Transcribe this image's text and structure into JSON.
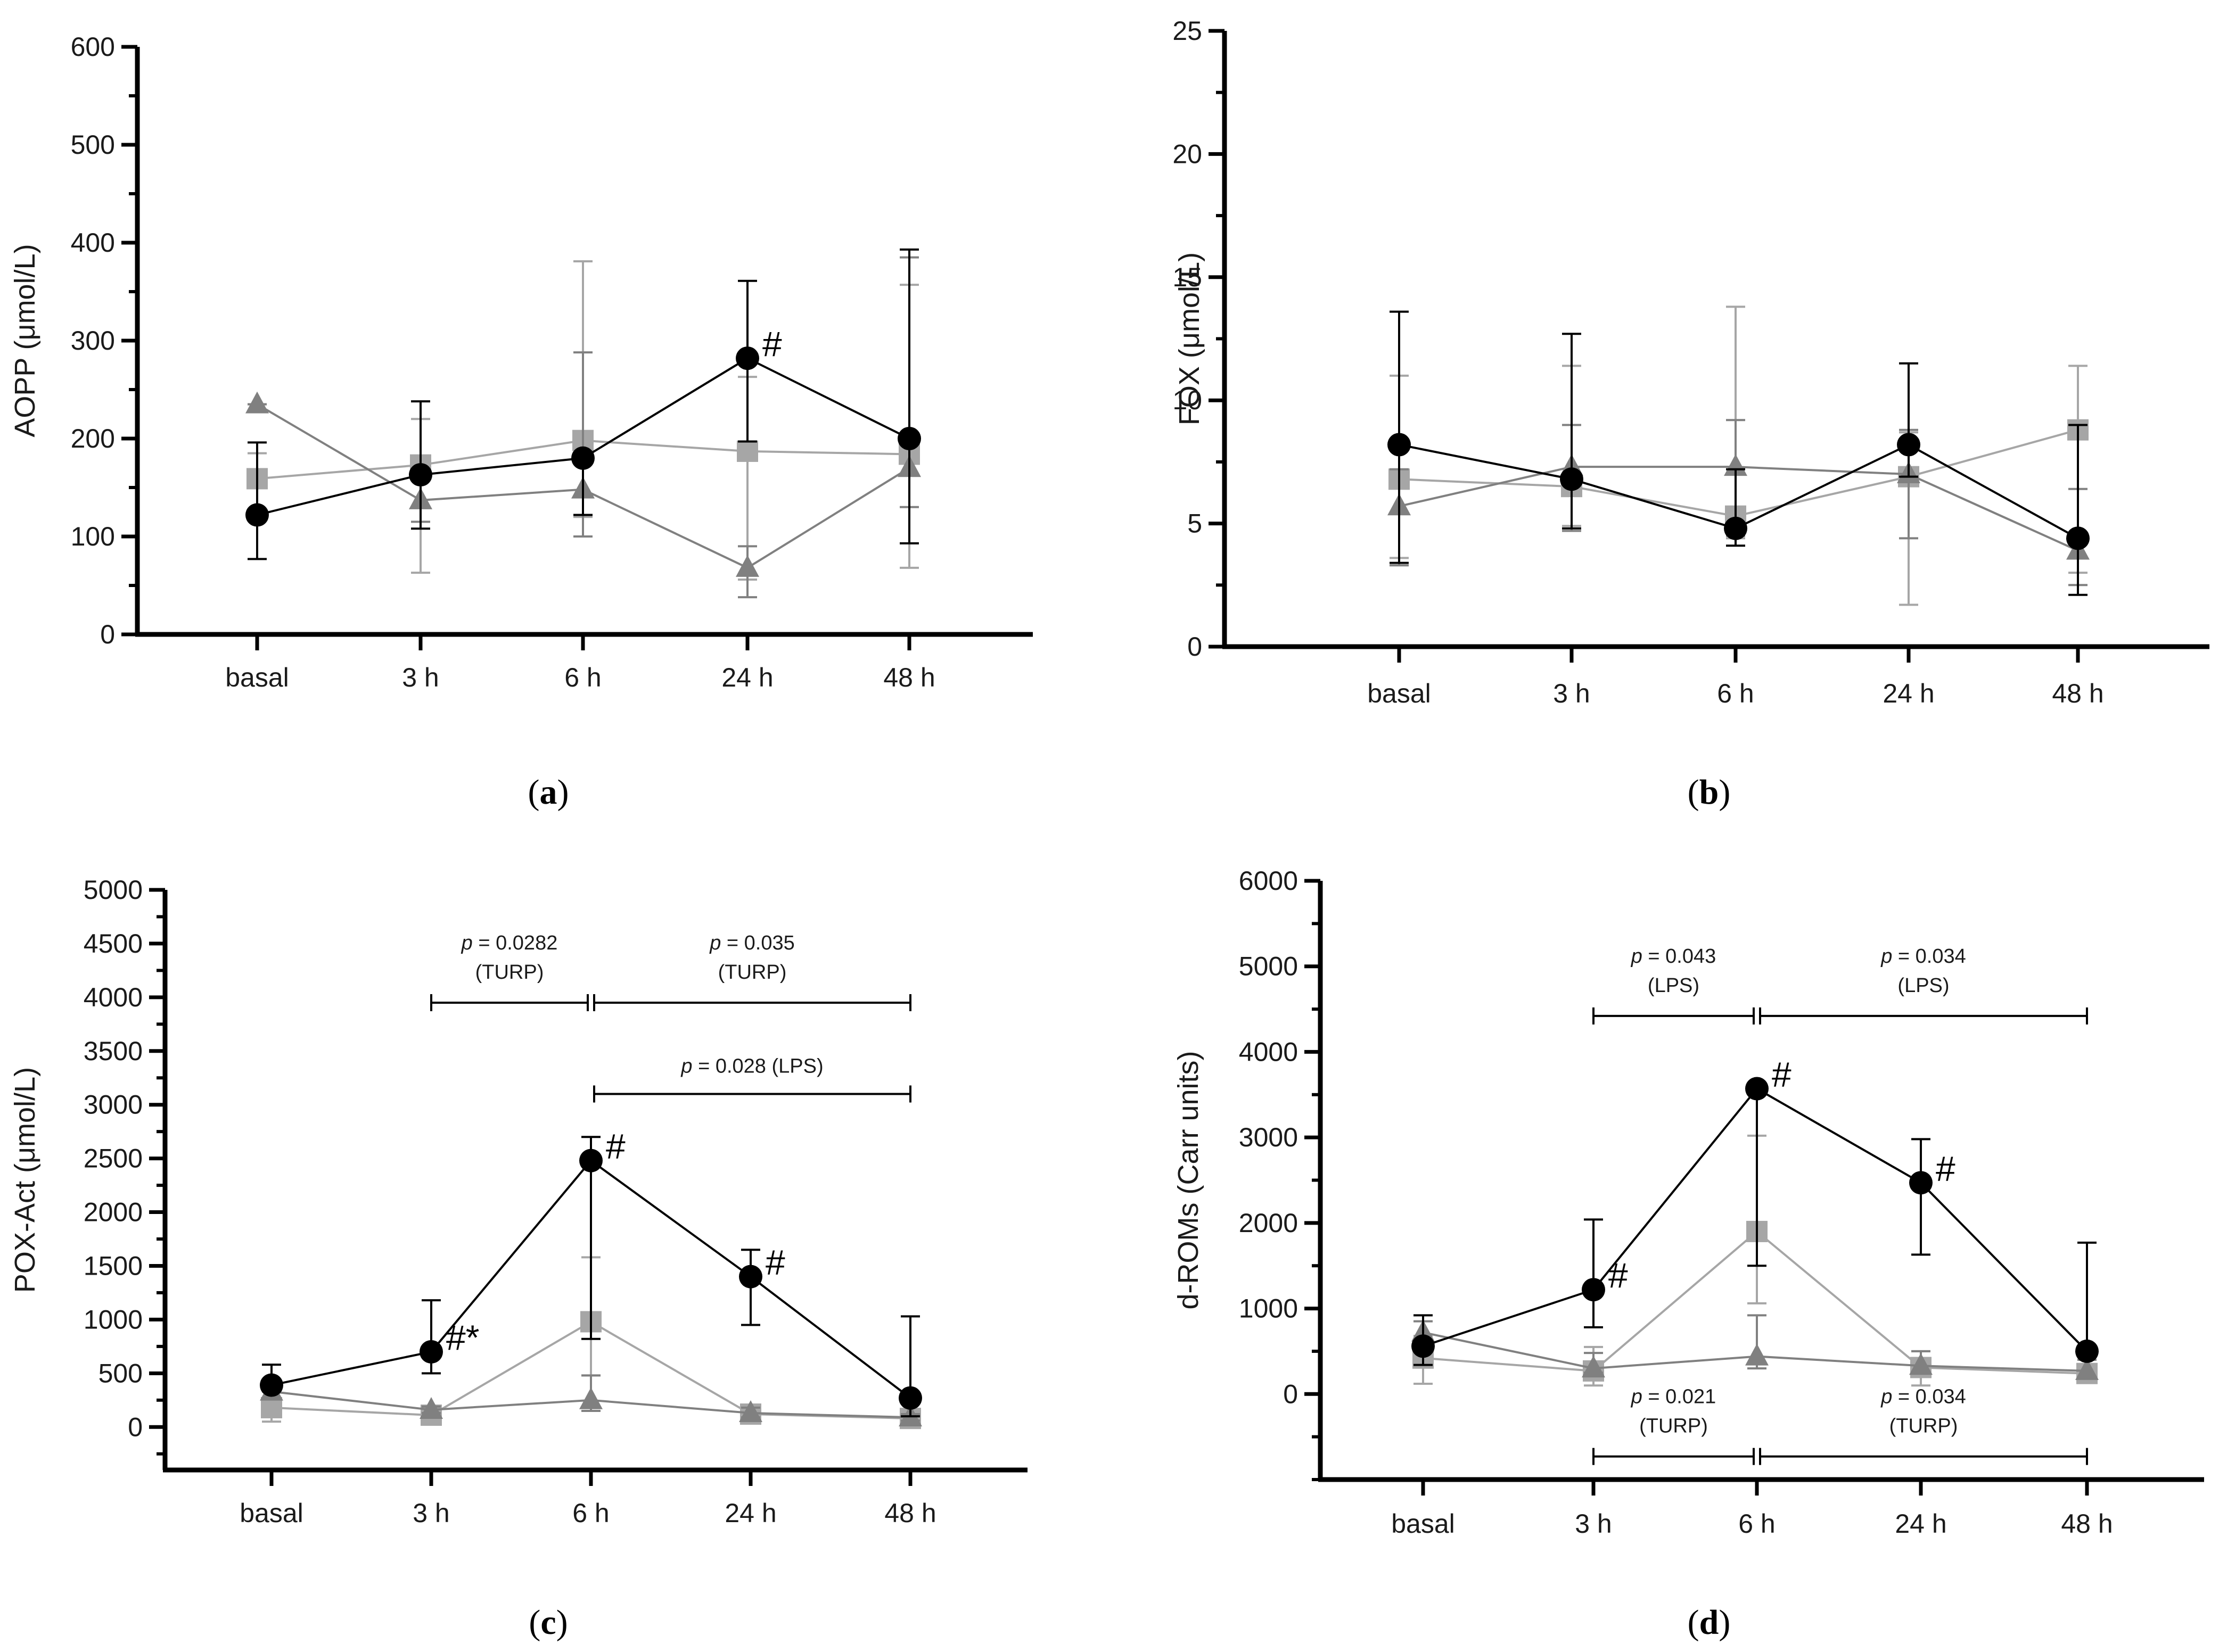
{
  "figure": {
    "colors": {
      "axis": "#000000",
      "LPS_series": "#000000",
      "TURP_series": "#a6a6a6",
      "control_series": "#808080"
    }
  },
  "chart_data": [
    {
      "panel": "a",
      "caption_letter": "a",
      "type": "line",
      "categories": [
        "basal",
        "3 h",
        "6 h",
        "24 h",
        "48 h"
      ],
      "ylabel": "AOPP (μmol/L)",
      "ylim": [
        0,
        600
      ],
      "yticks": [
        0,
        100,
        200,
        300,
        400,
        500,
        600
      ],
      "yminor_step": 50,
      "series": [
        {
          "name": "circle",
          "marker": "circle",
          "color": "#000000",
          "values": [
            122,
            163,
            180,
            282,
            200
          ],
          "err_low": [
            77,
            108,
            122,
            197,
            93
          ],
          "err_high": [
            196,
            238,
            180,
            361,
            393
          ]
        },
        {
          "name": "square",
          "marker": "square",
          "color": "#a6a6a6",
          "values": [
            159,
            173,
            198,
            187,
            184
          ],
          "err_low": [
            159,
            63,
            120,
            56,
            68
          ],
          "err_high": [
            185,
            220,
            381,
            263,
            357
          ]
        },
        {
          "name": "triangle",
          "marker": "triangle",
          "color": "#808080",
          "values": [
            235,
            137,
            148,
            68,
            170
          ],
          "err_low": [
            235,
            115,
            100,
            38,
            130
          ],
          "err_high": [
            235,
            160,
            288,
            90,
            385
          ]
        }
      ],
      "annotations": [
        {
          "text": "#",
          "category": "24 h",
          "value": 282
        }
      ],
      "brackets": []
    },
    {
      "panel": "b",
      "caption_letter": "b",
      "type": "line",
      "categories": [
        "basal",
        "3 h",
        "6 h",
        "24 h",
        "48 h"
      ],
      "ylabel": "FOX (μmol/L)",
      "ylim": [
        0,
        25
      ],
      "yticks": [
        0,
        5,
        10,
        15,
        20,
        25
      ],
      "yminor_step": 2.5,
      "series": [
        {
          "name": "circle",
          "marker": "circle",
          "color": "#000000",
          "values": [
            8.2,
            6.8,
            4.8,
            8.2,
            4.4
          ],
          "err_low": [
            3.4,
            4.8,
            4.1,
            6.9,
            2.1
          ],
          "err_high": [
            13.6,
            12.7,
            7.2,
            11.5,
            9.0
          ]
        },
        {
          "name": "square",
          "marker": "square",
          "color": "#a6a6a6",
          "values": [
            6.8,
            6.5,
            5.3,
            6.9,
            8.8
          ],
          "err_low": [
            3.6,
            4.9,
            4.4,
            1.7,
            3.0
          ],
          "err_high": [
            11.0,
            11.4,
            13.8,
            8.7,
            11.4
          ]
        },
        {
          "name": "triangle",
          "marker": "triangle",
          "color": "#808080",
          "values": [
            5.7,
            7.3,
            7.3,
            7.0,
            3.9
          ],
          "err_low": [
            3.3,
            4.7,
            4.5,
            4.4,
            2.5
          ],
          "err_high": [
            7.2,
            9.0,
            9.2,
            8.8,
            6.4
          ]
        }
      ],
      "annotations": [],
      "brackets": []
    },
    {
      "panel": "c",
      "caption_letter": "c",
      "type": "line",
      "categories": [
        "basal",
        "3 h",
        "6 h",
        "24 h",
        "48 h"
      ],
      "ylabel": "POX-Act (μmol/L)",
      "ylim": [
        -400,
        5000
      ],
      "yticks": [
        0,
        500,
        1000,
        1500,
        2000,
        2500,
        3000,
        3500,
        4000,
        4500,
        5000
      ],
      "yminor_step": 250,
      "series": [
        {
          "name": "circle",
          "marker": "circle",
          "color": "#000000",
          "values": [
            390,
            700,
            2480,
            1400,
            270
          ],
          "err_low": [
            390,
            500,
            820,
            950,
            100
          ],
          "err_high": [
            580,
            1180,
            2700,
            1650,
            1030
          ]
        },
        {
          "name": "square",
          "marker": "square",
          "color": "#a6a6a6",
          "values": [
            180,
            110,
            980,
            120,
            80
          ],
          "err_low": [
            50,
            60,
            480,
            60,
            40
          ],
          "err_high": [
            180,
            180,
            1580,
            200,
            120
          ]
        },
        {
          "name": "triangle",
          "marker": "triangle",
          "color": "#808080",
          "values": [
            330,
            160,
            250,
            130,
            90
          ],
          "err_low": [
            330,
            130,
            150,
            90,
            60
          ],
          "err_high": [
            350,
            190,
            480,
            180,
            120
          ]
        }
      ],
      "annotations": [
        {
          "text": "#*",
          "category": "3 h",
          "value": 700
        },
        {
          "text": "#",
          "category": "6 h",
          "value": 2480
        },
        {
          "text": "#",
          "category": "24 h",
          "value": 1400
        }
      ],
      "brackets": [
        {
          "from": "3 h",
          "to": "6 h",
          "value": 3950,
          "p_prefix": "p",
          "p_text": " = 0.0282",
          "group": "(TURP)",
          "group_side": "above"
        },
        {
          "from": "6 h",
          "to": "48 h",
          "value": 3950,
          "p_prefix": "p",
          "p_text": " = 0.035",
          "group": "(TURP)",
          "group_side": "above"
        },
        {
          "from": "6 h",
          "to": "48 h",
          "value": 3100,
          "p_prefix": "p",
          "p_text": " = 0.028 (LPS)",
          "group": "",
          "group_side": "inline"
        }
      ]
    },
    {
      "panel": "d",
      "caption_letter": "d",
      "type": "line",
      "categories": [
        "basal",
        "3 h",
        "6 h",
        "24 h",
        "48 h"
      ],
      "ylabel": "d-ROMs (Carr units)",
      "ylim": [
        -1000,
        6000
      ],
      "yticks": [
        0,
        1000,
        2000,
        3000,
        4000,
        5000,
        6000
      ],
      "yminor_step": 500,
      "series": [
        {
          "name": "circle",
          "marker": "circle",
          "color": "#000000",
          "values": [
            560,
            1220,
            3570,
            2470,
            500
          ],
          "err_low": [
            340,
            780,
            1500,
            1630,
            500
          ],
          "err_high": [
            920,
            2040,
            3570,
            2980,
            1770
          ]
        },
        {
          "name": "square",
          "marker": "square",
          "color": "#a6a6a6",
          "values": [
            420,
            270,
            1900,
            310,
            240
          ],
          "err_low": [
            120,
            100,
            1060,
            100,
            150
          ],
          "err_high": [
            680,
            550,
            3020,
            500,
            350
          ]
        },
        {
          "name": "triangle",
          "marker": "triangle",
          "color": "#808080",
          "values": [
            720,
            300,
            440,
            330,
            270
          ],
          "err_low": [
            620,
            250,
            300,
            250,
            200
          ],
          "err_high": [
            850,
            480,
            920,
            500,
            400
          ]
        }
      ],
      "annotations": [
        {
          "text": "#",
          "category": "3 h",
          "value": 1220
        },
        {
          "text": "#",
          "category": "6 h",
          "value": 3570
        },
        {
          "text": "#",
          "category": "24 h",
          "value": 2470
        }
      ],
      "brackets": [
        {
          "from": "3 h",
          "to": "6 h",
          "value": 4420,
          "p_prefix": "p",
          "p_text": " = 0.043",
          "group": "(LPS)",
          "group_side": "above"
        },
        {
          "from": "6 h",
          "to": "48 h",
          "value": 4420,
          "p_prefix": "p",
          "p_text": " = 0.034",
          "group": "(LPS)",
          "group_side": "above"
        },
        {
          "from": "3 h",
          "to": "6 h",
          "value": -730,
          "p_prefix": "p",
          "p_text": " = 0.021",
          "group": "(TURP)",
          "group_side": "above"
        },
        {
          "from": "6 h",
          "to": "48 h",
          "value": -730,
          "p_prefix": "p",
          "p_text": " = 0.034",
          "group": "(TURP)",
          "group_side": "above"
        }
      ]
    }
  ]
}
